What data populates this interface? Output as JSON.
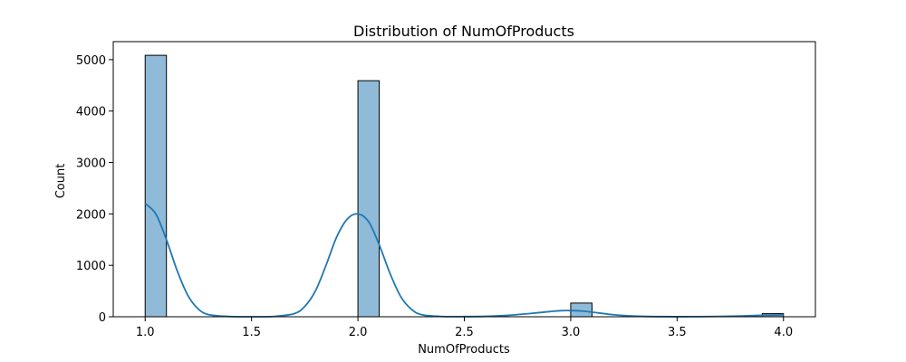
{
  "chart_data": {
    "type": "bar",
    "title": "Distribution of NumOfProducts",
    "xlabel": "NumOfProducts",
    "ylabel": "Count",
    "xlim": [
      0.85,
      4.15
    ],
    "ylim": [
      0,
      5350
    ],
    "x_ticks": [
      "1.0",
      "1.5",
      "2.0",
      "2.5",
      "3.0",
      "3.5",
      "4.0"
    ],
    "y_ticks": [
      "0",
      "1000",
      "2000",
      "3000",
      "4000",
      "5000"
    ],
    "bins": [
      {
        "start": 1.0,
        "end": 1.1,
        "count": 5084
      },
      {
        "start": 2.0,
        "end": 2.1,
        "count": 4590
      },
      {
        "start": 3.0,
        "end": 3.1,
        "count": 266
      },
      {
        "start": 3.9,
        "end": 4.0,
        "count": 60
      }
    ],
    "kde": {
      "x": [
        1.0,
        1.05,
        1.1,
        1.15,
        1.2,
        1.25,
        1.3,
        1.4,
        1.5,
        1.6,
        1.7,
        1.75,
        1.8,
        1.85,
        1.9,
        1.95,
        2.0,
        2.05,
        2.1,
        2.15,
        2.2,
        2.25,
        2.3,
        2.4,
        2.5,
        2.6,
        2.7,
        2.8,
        2.9,
        2.95,
        3.0,
        3.05,
        3.1,
        3.2,
        3.3,
        3.4,
        3.5,
        3.6,
        3.7,
        3.8,
        3.9,
        4.0
      ],
      "y": [
        2200,
        2000,
        1500,
        900,
        420,
        150,
        40,
        5,
        0,
        5,
        60,
        200,
        500,
        1000,
        1550,
        1900,
        2000,
        1850,
        1400,
        850,
        400,
        150,
        40,
        5,
        3,
        8,
        25,
        60,
        100,
        118,
        120,
        112,
        90,
        40,
        12,
        3,
        1,
        2,
        6,
        15,
        28,
        35
      ]
    },
    "colors": {
      "bar_fill": "#8fbbd9",
      "bar_edge": "#000000",
      "kde_line": "#1f77b4"
    },
    "grid": false,
    "legend": "none"
  }
}
